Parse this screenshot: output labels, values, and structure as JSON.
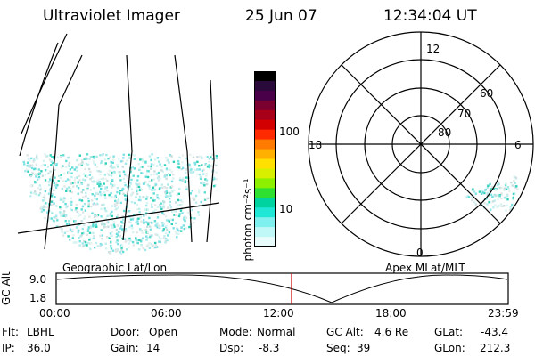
{
  "header": {
    "title": "Ultraviolet Imager",
    "date": "25 Jun 07",
    "time": "12:34:04 UT"
  },
  "geo_panel": {
    "caption": "Geographic Lat/Lon"
  },
  "colorbar": {
    "unit_label": "photon cm⁻²s⁻¹",
    "ticks": [
      "100",
      "10"
    ],
    "colors": [
      "#000000",
      "#2a0a3a",
      "#4a0048",
      "#7a0030",
      "#a80018",
      "#d20000",
      "#ff2a00",
      "#ff7a00",
      "#ffb000",
      "#ffe000",
      "#d8f000",
      "#8cf000",
      "#30e030",
      "#00d2a0",
      "#20e6d6",
      "#7ff0ee",
      "#bff8f6",
      "#e8fcfb"
    ]
  },
  "polar_panel": {
    "caption": "Apex MLat/MLT",
    "mlt_labels": {
      "top": "12",
      "left": "18",
      "right": "6",
      "bottom": "0"
    },
    "lat_labels": [
      "60",
      "70",
      "80"
    ]
  },
  "orbit_strip": {
    "ylabel": "GC Alt",
    "ytick_top": "9.0",
    "ytick_bottom": "1.8",
    "time_ticks": [
      "00:00",
      "06:00",
      "12:00",
      "18:00",
      "23:59"
    ],
    "marker_color": "#cc0000"
  },
  "info": {
    "rows": [
      [
        {
          "key": "Flt:",
          "value": "LBHL"
        },
        {
          "key": "Door:",
          "value": "Open"
        },
        {
          "key": "Mode:",
          "value": "Normal"
        },
        {
          "key": "GC Alt:",
          "value": "4.6 Re"
        },
        {
          "key": "GLat:",
          "value": "-43.4"
        }
      ],
      [
        {
          "key": "IP:",
          "value": "36.0"
        },
        {
          "key": "Gain:",
          "value": "14"
        },
        {
          "key": "Dsp:",
          "value": "-8.3"
        },
        {
          "key": "Seq:",
          "value": "39"
        },
        {
          "key": "GLon:",
          "value": "212.3"
        }
      ]
    ]
  }
}
